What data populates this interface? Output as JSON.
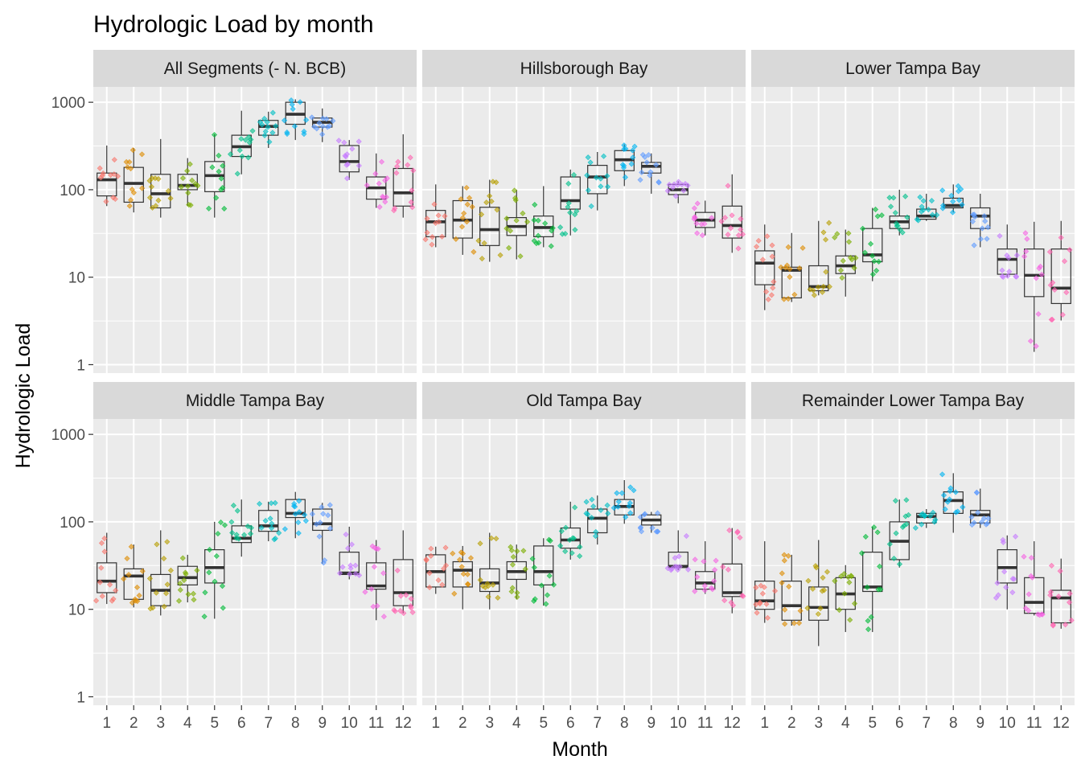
{
  "chart_data": {
    "type": "box",
    "title": "Hydrologic Load by month",
    "xlabel": "Month",
    "ylabel": "Hydrologic Load",
    "y_scale": "log10",
    "ylim": [
      0.8,
      1500
    ],
    "y_ticks": [
      1,
      10,
      100,
      1000
    ],
    "y_tick_labels": [
      "1",
      "10",
      "100",
      "1000"
    ],
    "categories": [
      "1",
      "2",
      "3",
      "4",
      "5",
      "6",
      "7",
      "8",
      "9",
      "10",
      "11",
      "12"
    ],
    "grid": true,
    "legend": "none",
    "month_colors": [
      "#F8766D",
      "#DE8C00",
      "#B79F00",
      "#7CAE00",
      "#00BA38",
      "#00C08B",
      "#00BFC4",
      "#00B4F0",
      "#619CFF",
      "#C77CFF",
      "#F564E3",
      "#FF64B0"
    ],
    "panels": [
      {
        "name": "All Segments (- N. BCB)",
        "boxes": [
          {
            "month": "1",
            "lower_whisker": 65,
            "q1": 85,
            "median": 130,
            "q3": 155,
            "upper_whisker": 320
          },
          {
            "month": "2",
            "lower_whisker": 55,
            "q1": 72,
            "median": 118,
            "q3": 180,
            "upper_whisker": 300
          },
          {
            "month": "3",
            "lower_whisker": 48,
            "q1": 62,
            "median": 90,
            "q3": 150,
            "upper_whisker": 380
          },
          {
            "month": "4",
            "lower_whisker": 65,
            "q1": 100,
            "median": 112,
            "q3": 150,
            "upper_whisker": 230
          },
          {
            "month": "5",
            "lower_whisker": 48,
            "q1": 95,
            "median": 145,
            "q3": 210,
            "upper_whisker": 430
          },
          {
            "month": "6",
            "lower_whisker": 150,
            "q1": 240,
            "median": 310,
            "q3": 420,
            "upper_whisker": 800
          },
          {
            "month": "7",
            "lower_whisker": 300,
            "q1": 420,
            "median": 530,
            "q3": 620,
            "upper_whisker": 780
          },
          {
            "month": "8",
            "lower_whisker": 370,
            "q1": 560,
            "median": 730,
            "q3": 1000,
            "upper_whisker": 1080
          },
          {
            "month": "9",
            "lower_whisker": 350,
            "q1": 520,
            "median": 590,
            "q3": 660,
            "upper_whisker": 850
          },
          {
            "month": "10",
            "lower_whisker": 130,
            "q1": 160,
            "median": 210,
            "q3": 320,
            "upper_whisker": 370
          },
          {
            "month": "11",
            "lower_whisker": 62,
            "q1": 78,
            "median": 105,
            "q3": 140,
            "upper_whisker": 260
          },
          {
            "month": "12",
            "lower_whisker": 48,
            "q1": 65,
            "median": 92,
            "q3": 175,
            "upper_whisker": 430
          }
        ]
      },
      {
        "name": "Hillsborough Bay",
        "boxes": [
          {
            "month": "1",
            "lower_whisker": 22,
            "q1": 29,
            "median": 43,
            "q3": 58,
            "upper_whisker": 115
          },
          {
            "month": "2",
            "lower_whisker": 18,
            "q1": 28,
            "median": 45,
            "q3": 75,
            "upper_whisker": 110
          },
          {
            "month": "3",
            "lower_whisker": 15,
            "q1": 23,
            "median": 35,
            "q3": 63,
            "upper_whisker": 130
          },
          {
            "month": "4",
            "lower_whisker": 16,
            "q1": 30,
            "median": 38,
            "q3": 48,
            "upper_whisker": 100
          },
          {
            "month": "5",
            "lower_whisker": 22,
            "q1": 29,
            "median": 37,
            "q3": 50,
            "upper_whisker": 110
          },
          {
            "month": "6",
            "lower_whisker": 30,
            "q1": 60,
            "median": 75,
            "q3": 140,
            "upper_whisker": 170
          },
          {
            "month": "7",
            "lower_whisker": 58,
            "q1": 90,
            "median": 140,
            "q3": 190,
            "upper_whisker": 270
          },
          {
            "month": "8",
            "lower_whisker": 110,
            "q1": 165,
            "median": 220,
            "q3": 280,
            "upper_whisker": 330
          },
          {
            "month": "9",
            "lower_whisker": 90,
            "q1": 155,
            "median": 185,
            "q3": 205,
            "upper_whisker": 260
          },
          {
            "month": "10",
            "lower_whisker": 70,
            "q1": 88,
            "median": 100,
            "q3": 115,
            "upper_whisker": 125
          },
          {
            "month": "11",
            "lower_whisker": 30,
            "q1": 37,
            "median": 45,
            "q3": 55,
            "upper_whisker": 75
          },
          {
            "month": "12",
            "lower_whisker": 19,
            "q1": 28,
            "median": 39,
            "q3": 65,
            "upper_whisker": 150
          }
        ]
      },
      {
        "name": "Lower Tampa Bay",
        "boxes": [
          {
            "month": "1",
            "lower_whisker": 4.2,
            "q1": 8.2,
            "median": 14.5,
            "q3": 20,
            "upper_whisker": 40
          },
          {
            "month": "2",
            "lower_whisker": 5.2,
            "q1": 5.8,
            "median": 12,
            "q3": 13,
            "upper_whisker": 32
          },
          {
            "month": "3",
            "lower_whisker": 6.2,
            "q1": 7,
            "median": 7.8,
            "q3": 13.5,
            "upper_whisker": 44
          },
          {
            "month": "4",
            "lower_whisker": 6,
            "q1": 11,
            "median": 13.5,
            "q3": 17.5,
            "upper_whisker": 35
          },
          {
            "month": "5",
            "lower_whisker": 9,
            "q1": 15,
            "median": 18,
            "q3": 36,
            "upper_whisker": 62
          },
          {
            "month": "6",
            "lower_whisker": 30,
            "q1": 36,
            "median": 43,
            "q3": 50,
            "upper_whisker": 100
          },
          {
            "month": "7",
            "lower_whisker": 44,
            "q1": 46,
            "median": 50,
            "q3": 60,
            "upper_whisker": 90
          },
          {
            "month": "8",
            "lower_whisker": 55,
            "q1": 62,
            "median": 66,
            "q3": 80,
            "upper_whisker": 115
          },
          {
            "month": "9",
            "lower_whisker": 22,
            "q1": 36,
            "median": 50,
            "q3": 62,
            "upper_whisker": 90
          },
          {
            "month": "10",
            "lower_whisker": 10,
            "q1": 10.8,
            "median": 16,
            "q3": 21,
            "upper_whisker": 40
          },
          {
            "month": "11",
            "lower_whisker": 1.4,
            "q1": 6,
            "median": 10.5,
            "q3": 21,
            "upper_whisker": 43
          },
          {
            "month": "12",
            "lower_whisker": 3.2,
            "q1": 5,
            "median": 7.5,
            "q3": 21,
            "upper_whisker": 44
          }
        ]
      },
      {
        "name": "Middle Tampa Bay",
        "boxes": [
          {
            "month": "1",
            "lower_whisker": 11.5,
            "q1": 15.5,
            "median": 21,
            "q3": 34,
            "upper_whisker": 75
          },
          {
            "month": "2",
            "lower_whisker": 10.5,
            "q1": 13,
            "median": 24,
            "q3": 29,
            "upper_whisker": 55
          },
          {
            "month": "3",
            "lower_whisker": 8.5,
            "q1": 11,
            "median": 16.5,
            "q3": 25,
            "upper_whisker": 80
          },
          {
            "month": "4",
            "lower_whisker": 12,
            "q1": 19,
            "median": 23,
            "q3": 31,
            "upper_whisker": 42
          },
          {
            "month": "5",
            "lower_whisker": 7.8,
            "q1": 20,
            "median": 30,
            "q3": 48,
            "upper_whisker": 100
          },
          {
            "month": "6",
            "lower_whisker": 40,
            "q1": 58,
            "median": 65,
            "q3": 90,
            "upper_whisker": 180
          },
          {
            "month": "7",
            "lower_whisker": 60,
            "q1": 78,
            "median": 90,
            "q3": 135,
            "upper_whisker": 170
          },
          {
            "month": "8",
            "lower_whisker": 65,
            "q1": 112,
            "median": 125,
            "q3": 180,
            "upper_whisker": 220
          },
          {
            "month": "9",
            "lower_whisker": 33,
            "q1": 80,
            "median": 95,
            "q3": 140,
            "upper_whisker": 165
          },
          {
            "month": "10",
            "lower_whisker": 22,
            "q1": 25,
            "median": 26,
            "q3": 45,
            "upper_whisker": 88
          },
          {
            "month": "11",
            "lower_whisker": 7.5,
            "q1": 17,
            "median": 18.5,
            "q3": 34,
            "upper_whisker": 62
          },
          {
            "month": "12",
            "lower_whisker": 9,
            "q1": 11,
            "median": 15.5,
            "q3": 37,
            "upper_whisker": 80
          }
        ]
      },
      {
        "name": "Old Tampa Bay",
        "boxes": [
          {
            "month": "1",
            "lower_whisker": 15,
            "q1": 18,
            "median": 27,
            "q3": 42,
            "upper_whisker": 52
          },
          {
            "month": "2",
            "lower_whisker": 10,
            "q1": 18,
            "median": 28,
            "q3": 35,
            "upper_whisker": 53
          },
          {
            "month": "3",
            "lower_whisker": 10,
            "q1": 16,
            "median": 20,
            "q3": 29,
            "upper_whisker": 75
          },
          {
            "month": "4",
            "lower_whisker": 13,
            "q1": 22,
            "median": 27,
            "q3": 35,
            "upper_whisker": 55
          },
          {
            "month": "5",
            "lower_whisker": 11,
            "q1": 19,
            "median": 27,
            "q3": 53,
            "upper_whisker": 65
          },
          {
            "month": "6",
            "lower_whisker": 37,
            "q1": 50,
            "median": 62,
            "q3": 85,
            "upper_whisker": 170
          },
          {
            "month": "7",
            "lower_whisker": 55,
            "q1": 75,
            "median": 110,
            "q3": 140,
            "upper_whisker": 200
          },
          {
            "month": "8",
            "lower_whisker": 95,
            "q1": 120,
            "median": 150,
            "q3": 180,
            "upper_whisker": 300
          },
          {
            "month": "9",
            "lower_whisker": 75,
            "q1": 92,
            "median": 105,
            "q3": 120,
            "upper_whisker": 130
          },
          {
            "month": "10",
            "lower_whisker": 28,
            "q1": 30,
            "median": 31,
            "q3": 45,
            "upper_whisker": 80
          },
          {
            "month": "11",
            "lower_whisker": 15,
            "q1": 17,
            "median": 20,
            "q3": 27,
            "upper_whisker": 60
          },
          {
            "month": "12",
            "lower_whisker": 9,
            "q1": 14,
            "median": 15.5,
            "q3": 33,
            "upper_whisker": 85
          }
        ]
      },
      {
        "name": "Remainder Lower Tampa Bay",
        "boxes": [
          {
            "month": "1",
            "lower_whisker": 7,
            "q1": 10,
            "median": 12.5,
            "q3": 21,
            "upper_whisker": 60
          },
          {
            "month": "2",
            "lower_whisker": 6.5,
            "q1": 7.5,
            "median": 11,
            "q3": 21,
            "upper_whisker": 42
          },
          {
            "month": "3",
            "lower_whisker": 3.8,
            "q1": 7.5,
            "median": 10.5,
            "q3": 18,
            "upper_whisker": 62
          },
          {
            "month": "4",
            "lower_whisker": 5.5,
            "q1": 10,
            "median": 15,
            "q3": 23,
            "upper_whisker": 32
          },
          {
            "month": "5",
            "lower_whisker": 5.5,
            "q1": 16,
            "median": 18,
            "q3": 45,
            "upper_whisker": 88
          },
          {
            "month": "6",
            "lower_whisker": 30,
            "q1": 37,
            "median": 60,
            "q3": 100,
            "upper_whisker": 180
          },
          {
            "month": "7",
            "lower_whisker": 85,
            "q1": 97,
            "median": 115,
            "q3": 125,
            "upper_whisker": 140
          },
          {
            "month": "8",
            "lower_whisker": 75,
            "q1": 125,
            "median": 175,
            "q3": 220,
            "upper_whisker": 360
          },
          {
            "month": "9",
            "lower_whisker": 85,
            "q1": 97,
            "median": 120,
            "q3": 135,
            "upper_whisker": 240
          },
          {
            "month": "10",
            "lower_whisker": 10,
            "q1": 20,
            "median": 30,
            "q3": 48,
            "upper_whisker": 70
          },
          {
            "month": "11",
            "lower_whisker": 8.5,
            "q1": 9,
            "median": 12,
            "q3": 23,
            "upper_whisker": 60
          },
          {
            "month": "12",
            "lower_whisker": 6,
            "q1": 7,
            "median": 13.5,
            "q3": 16.5,
            "upper_whisker": 38
          }
        ]
      }
    ]
  }
}
